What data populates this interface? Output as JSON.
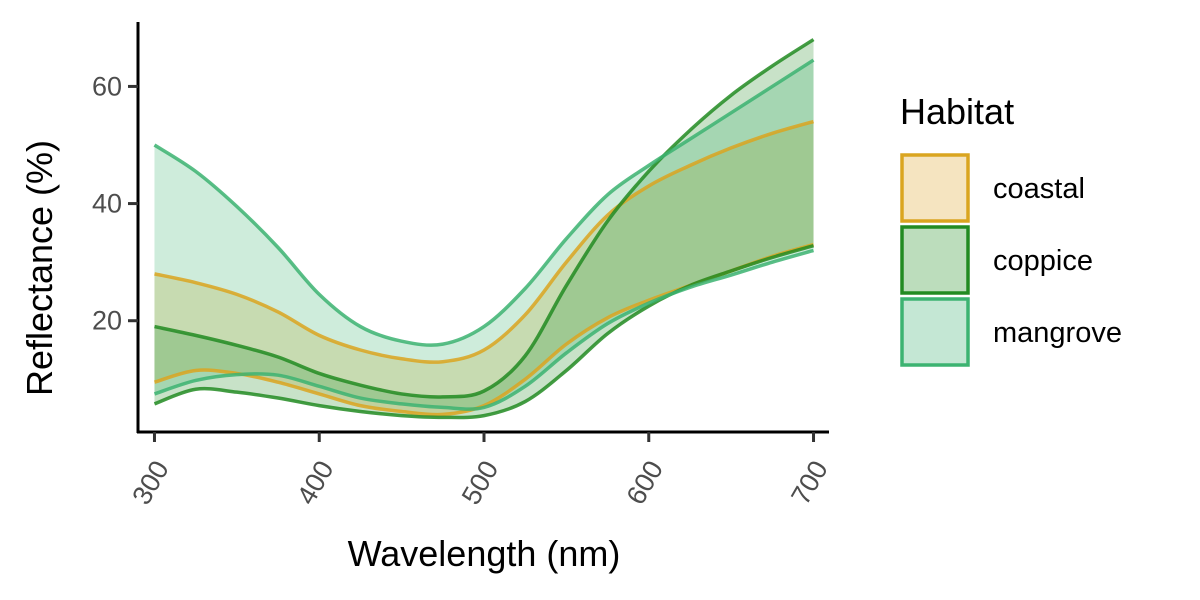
{
  "chart_data": {
    "type": "area",
    "xlabel": "Wavelength (nm)",
    "ylabel": "Reflectance (%)",
    "xlim": [
      290,
      710
    ],
    "ylim": [
      1,
      71
    ],
    "x_ticks": [
      300,
      400,
      500,
      600,
      700
    ],
    "y_ticks": [
      20,
      40,
      60
    ],
    "grid": false,
    "legend_title": "Habitat",
    "legend_position": "right",
    "x": [
      300,
      325,
      350,
      375,
      400,
      425,
      450,
      475,
      500,
      525,
      550,
      575,
      600,
      625,
      650,
      675,
      700
    ],
    "series": [
      {
        "name": "coastal",
        "color": "#DAA520",
        "fill": "#F5E4C0",
        "upper": [
          28,
          26.5,
          24.5,
          21.5,
          17.5,
          15,
          13.5,
          13,
          15,
          21,
          30,
          38,
          43,
          46.5,
          49.5,
          52,
          54
        ],
        "lower": [
          9.5,
          11.5,
          11,
          9.5,
          7.5,
          5.5,
          4.5,
          4,
          5.5,
          10,
          16,
          20.5,
          23.5,
          26,
          28.5,
          31,
          33
        ]
      },
      {
        "name": "coppice",
        "color": "#228B22",
        "fill": "#BCDDBC",
        "upper": [
          19,
          17.5,
          15.8,
          13.8,
          11,
          9,
          7.5,
          7,
          8,
          14,
          26,
          37,
          45.5,
          52.5,
          58.5,
          63.5,
          68
        ],
        "lower": [
          5.8,
          8.3,
          7.8,
          6.8,
          5.5,
          4.5,
          3.8,
          3.5,
          3.8,
          6.2,
          11.5,
          17.8,
          22.5,
          26,
          28.5,
          30.8,
          32.8
        ]
      },
      {
        "name": "mangrove",
        "color": "#3CB371",
        "fill": "#C4E7D4",
        "upper": [
          50,
          45.5,
          39.5,
          32.5,
          24.5,
          19,
          16.5,
          16,
          19,
          25.5,
          34,
          41.5,
          46.5,
          51,
          55.5,
          60,
          64.5
        ],
        "lower": [
          7.5,
          9.8,
          10.8,
          10.7,
          8.8,
          6.8,
          5.8,
          5.2,
          5.2,
          8.8,
          14.5,
          19.5,
          23,
          25.7,
          27.8,
          30,
          32
        ]
      }
    ]
  }
}
